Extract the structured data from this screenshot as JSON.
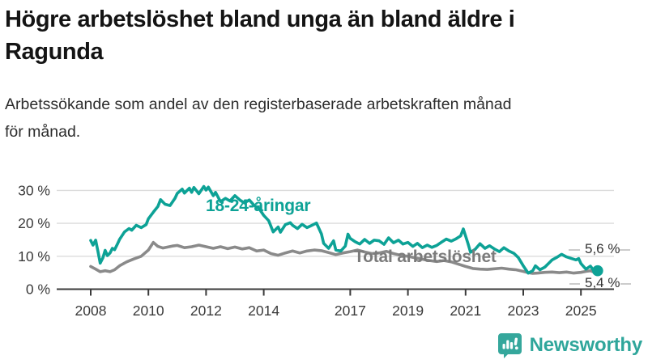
{
  "title": "Högre arbetslöshet bland unga än bland äldre i Ragunda",
  "title_lines": [
    "Högre arbetslöshet bland unga än bland äldre i",
    "Ragunda"
  ],
  "subtitle": "Arbetssökande som andel av den registerbaserade arbetskraften månad för månad.",
  "subtitle_lines": [
    "Arbetssökande som andel av den registerbaserade arbetskraften månad",
    "för månad."
  ],
  "footer": {
    "logo_text": "Newsworthy"
  },
  "colors": {
    "youth_line": "#0da296",
    "total_line": "#8a8a8a",
    "total_label": "#7b7b7b",
    "grid": "#dcdcdc",
    "axis": "#3a3a3a",
    "tick_text": "#3a3a3a",
    "end_label_text": "#333333",
    "logo_teal": "#35a79c",
    "background": "#ffffff"
  },
  "chart_data": {
    "type": "line",
    "title": "Högre arbetslöshet bland unga än bland äldre i Ragunda",
    "subtitle": "Arbetssökande som andel av den registerbaserade arbetskraften månad för månad.",
    "xlabel": "",
    "ylabel": "",
    "unit": "%",
    "x_is_time": true,
    "xlim": [
      2008,
      2025.8
    ],
    "ylim": [
      0,
      33
    ],
    "grid": "horizontal",
    "legend_position": "inline-annotations",
    "x_ticks": [
      2008,
      2010,
      2012,
      2014,
      2017,
      2019,
      2021,
      2023,
      2025
    ],
    "x_tick_labels": [
      "2008",
      "2010",
      "2012",
      "2014",
      "2017",
      "2019",
      "2021",
      "2023",
      "2025"
    ],
    "y_ticks": [
      0,
      10,
      20,
      30
    ],
    "y_tick_labels": [
      "0 %",
      "10 %",
      "20 %",
      "30 %"
    ],
    "series": [
      {
        "name": "18-24-åringar",
        "color": "#0da296",
        "end_value": 5.6,
        "end_label": "5,6 %",
        "points": [
          [
            2008.0,
            14.8
          ],
          [
            2008.08,
            13.4
          ],
          [
            2008.17,
            14.9
          ],
          [
            2008.25,
            11.5
          ],
          [
            2008.33,
            7.9
          ],
          [
            2008.42,
            9.5
          ],
          [
            2008.5,
            11.8
          ],
          [
            2008.58,
            10.2
          ],
          [
            2008.67,
            11.0
          ],
          [
            2008.75,
            12.4
          ],
          [
            2008.83,
            12.0
          ],
          [
            2008.92,
            13.6
          ],
          [
            2009.0,
            15.1
          ],
          [
            2009.17,
            17.4
          ],
          [
            2009.33,
            18.4
          ],
          [
            2009.42,
            17.9
          ],
          [
            2009.58,
            19.4
          ],
          [
            2009.75,
            18.7
          ],
          [
            2009.92,
            19.6
          ],
          [
            2010.0,
            21.4
          ],
          [
            2010.17,
            23.4
          ],
          [
            2010.33,
            25.1
          ],
          [
            2010.42,
            27.2
          ],
          [
            2010.58,
            25.8
          ],
          [
            2010.75,
            25.4
          ],
          [
            2010.92,
            27.6
          ],
          [
            2011.0,
            29.1
          ],
          [
            2011.17,
            30.4
          ],
          [
            2011.25,
            29.2
          ],
          [
            2011.42,
            30.7
          ],
          [
            2011.5,
            29.4
          ],
          [
            2011.58,
            30.9
          ],
          [
            2011.75,
            29.0
          ],
          [
            2011.92,
            31.2
          ],
          [
            2012.0,
            30.1
          ],
          [
            2012.08,
            31.0
          ],
          [
            2012.25,
            28.4
          ],
          [
            2012.33,
            29.4
          ],
          [
            2012.5,
            26.6
          ],
          [
            2012.67,
            27.6
          ],
          [
            2012.83,
            26.8
          ],
          [
            2013.0,
            28.4
          ],
          [
            2013.17,
            27.1
          ],
          [
            2013.33,
            26.2
          ],
          [
            2013.5,
            27.1
          ],
          [
            2013.67,
            25.4
          ],
          [
            2013.83,
            24.6
          ],
          [
            2014.0,
            22.4
          ],
          [
            2014.17,
            20.8
          ],
          [
            2014.33,
            17.4
          ],
          [
            2014.5,
            18.9
          ],
          [
            2014.58,
            17.3
          ],
          [
            2014.75,
            19.6
          ],
          [
            2014.92,
            20.2
          ],
          [
            2015.0,
            19.4
          ],
          [
            2015.17,
            18.4
          ],
          [
            2015.33,
            19.7
          ],
          [
            2015.5,
            18.7
          ],
          [
            2015.67,
            19.4
          ],
          [
            2015.83,
            20.1
          ],
          [
            2016.0,
            16.8
          ],
          [
            2016.08,
            13.9
          ],
          [
            2016.25,
            12.4
          ],
          [
            2016.42,
            14.7
          ],
          [
            2016.5,
            11.9
          ],
          [
            2016.67,
            11.6
          ],
          [
            2016.83,
            13.1
          ],
          [
            2016.92,
            16.7
          ],
          [
            2017.0,
            15.4
          ],
          [
            2017.17,
            14.4
          ],
          [
            2017.33,
            13.7
          ],
          [
            2017.5,
            15.1
          ],
          [
            2017.67,
            13.9
          ],
          [
            2017.83,
            14.9
          ],
          [
            2018.0,
            14.7
          ],
          [
            2018.17,
            13.6
          ],
          [
            2018.33,
            15.6
          ],
          [
            2018.5,
            14.1
          ],
          [
            2018.67,
            14.9
          ],
          [
            2018.83,
            13.7
          ],
          [
            2019.0,
            14.2
          ],
          [
            2019.17,
            13.0
          ],
          [
            2019.33,
            13.9
          ],
          [
            2019.5,
            12.6
          ],
          [
            2019.67,
            13.4
          ],
          [
            2019.83,
            12.7
          ],
          [
            2020.0,
            13.3
          ],
          [
            2020.17,
            14.3
          ],
          [
            2020.33,
            15.2
          ],
          [
            2020.5,
            14.6
          ],
          [
            2020.67,
            15.3
          ],
          [
            2020.83,
            16.2
          ],
          [
            2020.92,
            18.3
          ],
          [
            2021.08,
            14.0
          ],
          [
            2021.17,
            11.2
          ],
          [
            2021.33,
            12.1
          ],
          [
            2021.5,
            13.8
          ],
          [
            2021.67,
            12.4
          ],
          [
            2021.83,
            13.2
          ],
          [
            2022.0,
            12.2
          ],
          [
            2022.17,
            11.4
          ],
          [
            2022.33,
            12.6
          ],
          [
            2022.5,
            11.6
          ],
          [
            2022.67,
            10.9
          ],
          [
            2022.83,
            9.6
          ],
          [
            2023.0,
            7.1
          ],
          [
            2023.17,
            4.9
          ],
          [
            2023.33,
            5.6
          ],
          [
            2023.42,
            7.1
          ],
          [
            2023.58,
            5.9
          ],
          [
            2023.75,
            6.7
          ],
          [
            2023.92,
            8.2
          ],
          [
            2024.0,
            8.9
          ],
          [
            2024.17,
            9.7
          ],
          [
            2024.33,
            10.6
          ],
          [
            2024.5,
            9.8
          ],
          [
            2024.67,
            9.3
          ],
          [
            2024.83,
            8.9
          ],
          [
            2024.92,
            9.3
          ],
          [
            2025.0,
            7.8
          ],
          [
            2025.17,
            6.1
          ],
          [
            2025.33,
            7.0
          ],
          [
            2025.42,
            5.9
          ],
          [
            2025.5,
            6.3
          ],
          [
            2025.58,
            5.6
          ]
        ]
      },
      {
        "name": "Total arbetslöshet",
        "color": "#8a8a8a",
        "end_value": 5.4,
        "end_label": "5,4 %",
        "points": [
          [
            2008.0,
            6.9
          ],
          [
            2008.17,
            6.1
          ],
          [
            2008.33,
            5.3
          ],
          [
            2008.5,
            5.6
          ],
          [
            2008.67,
            5.3
          ],
          [
            2008.83,
            5.9
          ],
          [
            2009.0,
            7.1
          ],
          [
            2009.25,
            8.3
          ],
          [
            2009.5,
            9.2
          ],
          [
            2009.75,
            10.0
          ],
          [
            2010.0,
            11.9
          ],
          [
            2010.17,
            14.2
          ],
          [
            2010.33,
            13.0
          ],
          [
            2010.5,
            12.5
          ],
          [
            2010.67,
            12.8
          ],
          [
            2010.83,
            13.1
          ],
          [
            2011.0,
            13.3
          ],
          [
            2011.25,
            12.6
          ],
          [
            2011.5,
            12.9
          ],
          [
            2011.75,
            13.4
          ],
          [
            2012.0,
            12.9
          ],
          [
            2012.25,
            12.4
          ],
          [
            2012.5,
            12.9
          ],
          [
            2012.75,
            12.3
          ],
          [
            2013.0,
            12.8
          ],
          [
            2013.25,
            12.2
          ],
          [
            2013.5,
            12.6
          ],
          [
            2013.75,
            11.6
          ],
          [
            2014.0,
            11.9
          ],
          [
            2014.25,
            10.8
          ],
          [
            2014.5,
            10.3
          ],
          [
            2014.75,
            11.0
          ],
          [
            2015.0,
            11.6
          ],
          [
            2015.25,
            11.0
          ],
          [
            2015.5,
            11.6
          ],
          [
            2015.75,
            11.9
          ],
          [
            2016.0,
            11.7
          ],
          [
            2016.25,
            11.1
          ],
          [
            2016.5,
            10.5
          ],
          [
            2016.75,
            11.0
          ],
          [
            2017.0,
            11.4
          ],
          [
            2017.25,
            11.9
          ],
          [
            2017.5,
            11.3
          ],
          [
            2017.75,
            10.8
          ],
          [
            2018.0,
            11.0
          ],
          [
            2018.25,
            11.5
          ],
          [
            2018.5,
            10.8
          ],
          [
            2018.75,
            10.3
          ],
          [
            2019.0,
            10.0
          ],
          [
            2019.25,
            9.5
          ],
          [
            2019.5,
            9.1
          ],
          [
            2019.75,
            8.7
          ],
          [
            2020.0,
            8.4
          ],
          [
            2020.25,
            8.7
          ],
          [
            2020.5,
            8.3
          ],
          [
            2020.75,
            7.6
          ],
          [
            2021.0,
            6.9
          ],
          [
            2021.25,
            6.3
          ],
          [
            2021.5,
            6.1
          ],
          [
            2021.75,
            6.0
          ],
          [
            2022.0,
            6.2
          ],
          [
            2022.25,
            6.4
          ],
          [
            2022.5,
            6.1
          ],
          [
            2022.75,
            5.9
          ],
          [
            2023.0,
            5.4
          ],
          [
            2023.17,
            5.0
          ],
          [
            2023.33,
            4.8
          ],
          [
            2023.5,
            4.9
          ],
          [
            2023.75,
            5.1
          ],
          [
            2024.0,
            5.2
          ],
          [
            2024.25,
            5.0
          ],
          [
            2024.5,
            5.2
          ],
          [
            2024.75,
            4.9
          ],
          [
            2025.0,
            5.1
          ],
          [
            2025.17,
            5.4
          ],
          [
            2025.33,
            5.6
          ],
          [
            2025.45,
            5.2
          ],
          [
            2025.58,
            5.4
          ]
        ]
      }
    ],
    "annotations": [
      {
        "text": "18-24-åringar",
        "series": "18-24-åringar"
      },
      {
        "text": "Total arbetslöshet",
        "series": "Total arbetslöshet"
      },
      {
        "text": "5,6 %",
        "series": "18-24-åringar",
        "position": "line-end"
      },
      {
        "text": "5,4 %",
        "series": "Total arbetslöshet",
        "position": "line-end"
      }
    ]
  }
}
